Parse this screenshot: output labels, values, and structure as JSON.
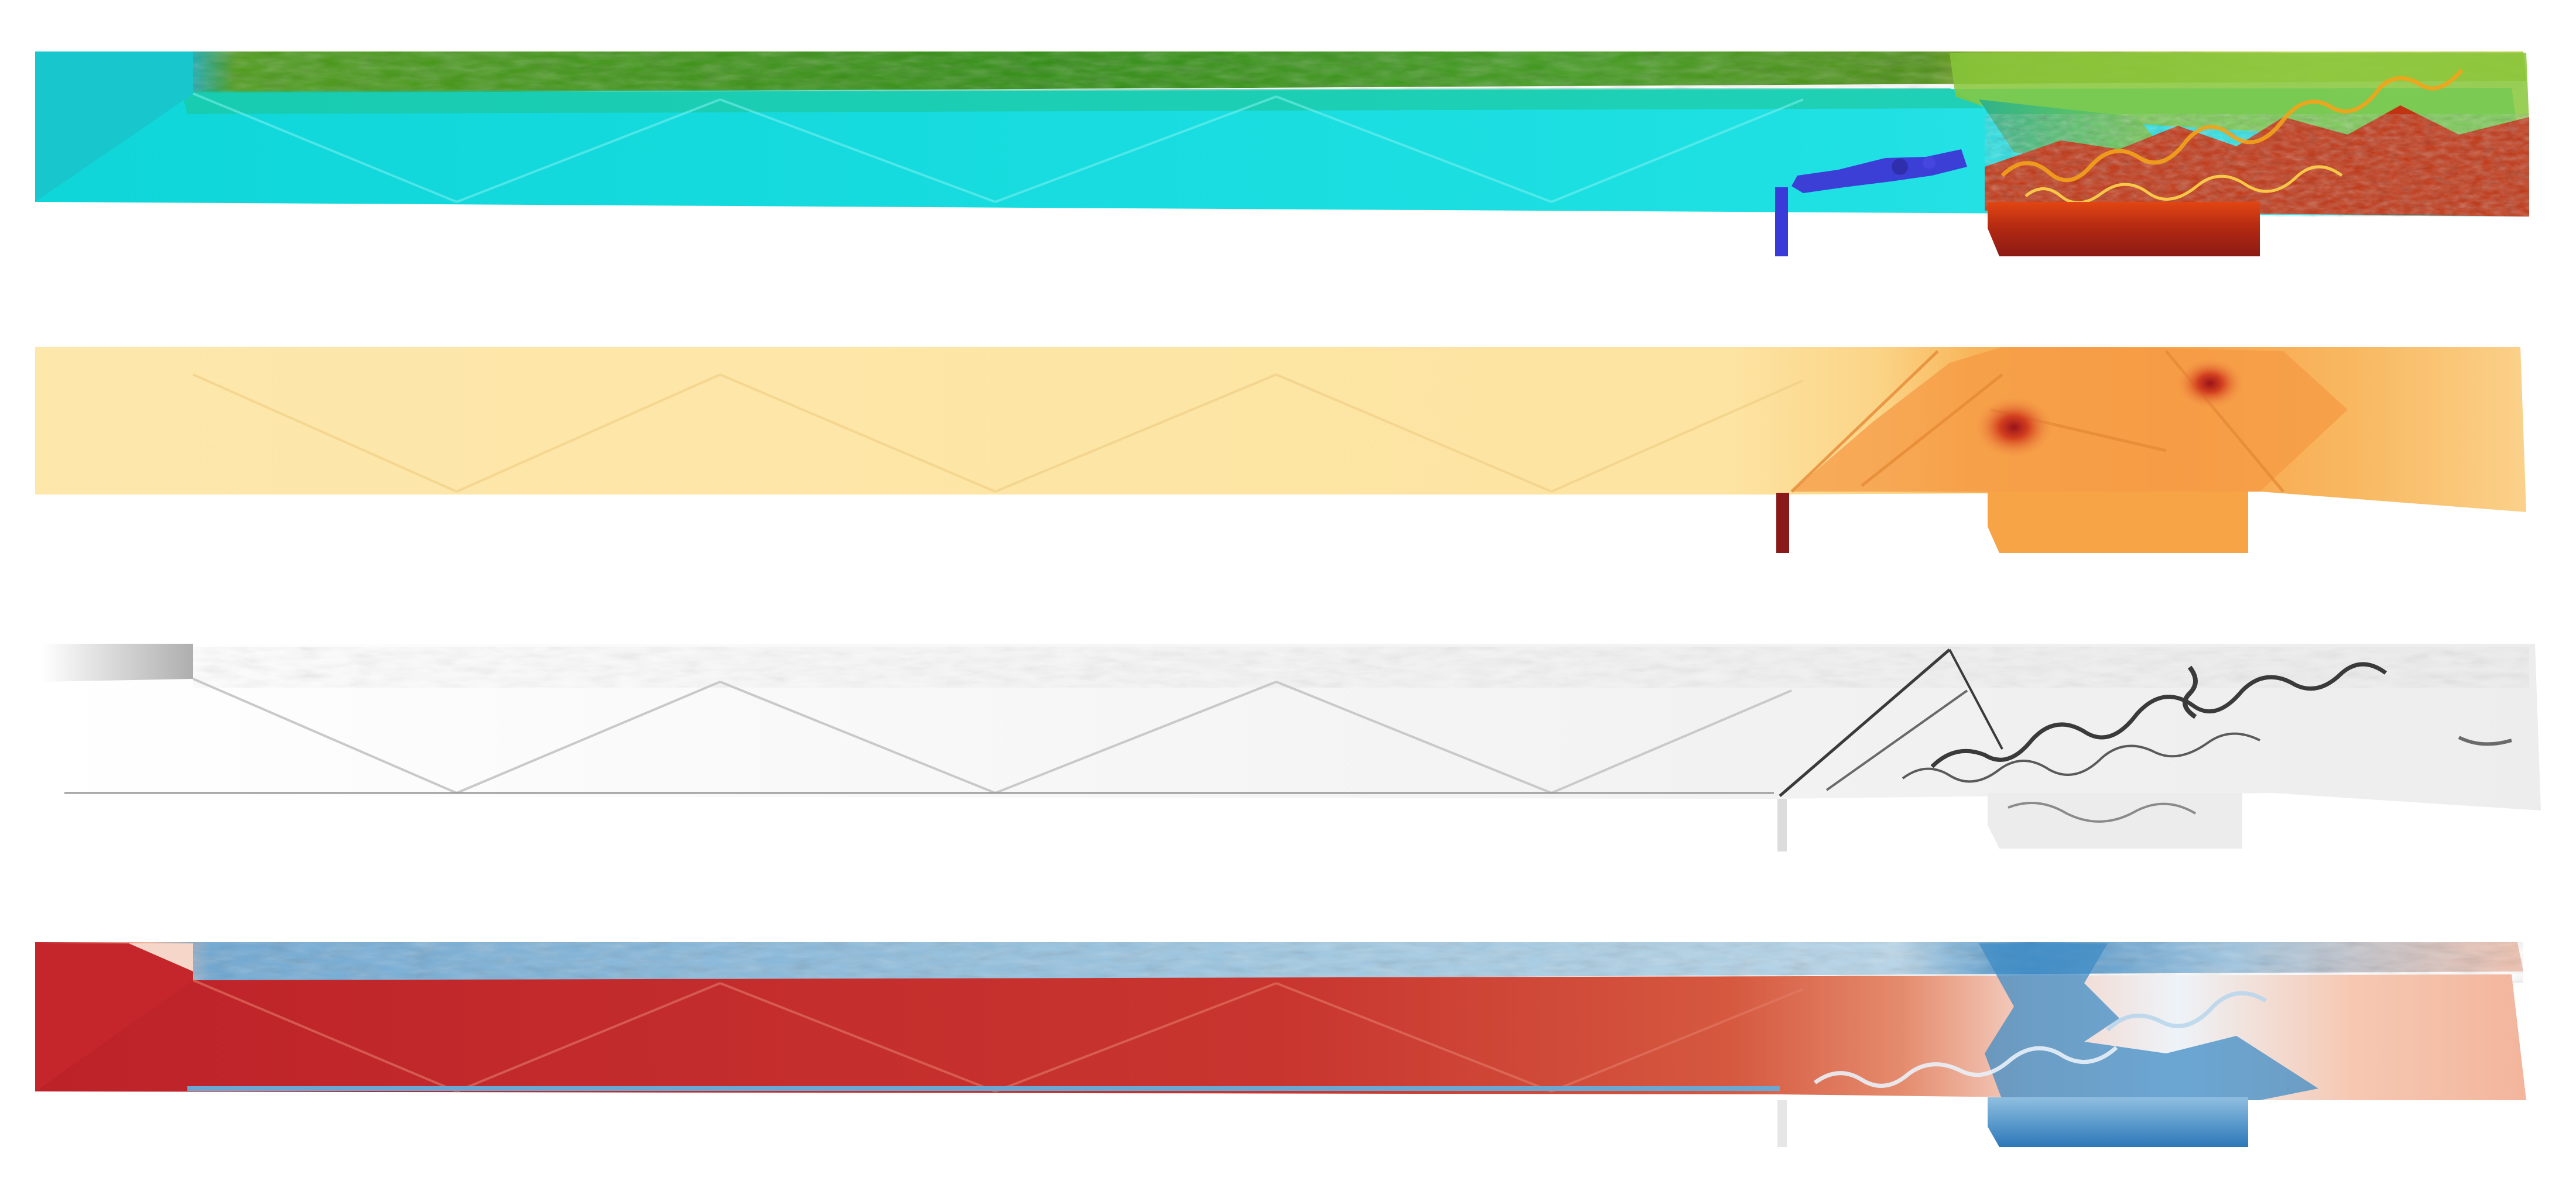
{
  "figure": {
    "background": "#ffffff",
    "panels": [
      {
        "id": "panel-1",
        "colormap": "jet",
        "colors": {
          "freestream": "#00e5e5",
          "boundary_layer": "#2f8f12",
          "reaction_zone": "#c8380e",
          "hot_core": "#8b1a14",
          "fuel_jet": "#3a3ad8",
          "front_face": "#12cfd2"
        }
      },
      {
        "id": "panel-2",
        "colormap": "YlOrRd",
        "colors": {
          "freestream": "#fde6a7",
          "compressed": "#f7a24a",
          "peak": "#a4141a",
          "injector": "#8a1a1a"
        }
      },
      {
        "id": "panel-3",
        "colormap": "grayscale",
        "colors": {
          "background": "#f3f3f3",
          "edges": "#3a3a3a",
          "faint": "#c9c9c9"
        }
      },
      {
        "id": "panel-4",
        "colormap": "RdBu",
        "colors": {
          "positive": "#c0272d",
          "light_positive": "#f2b7a1",
          "neutral": "#f7f0ee",
          "negative": "#2f7dbd",
          "light_negative": "#9cc5e2"
        }
      }
    ]
  }
}
